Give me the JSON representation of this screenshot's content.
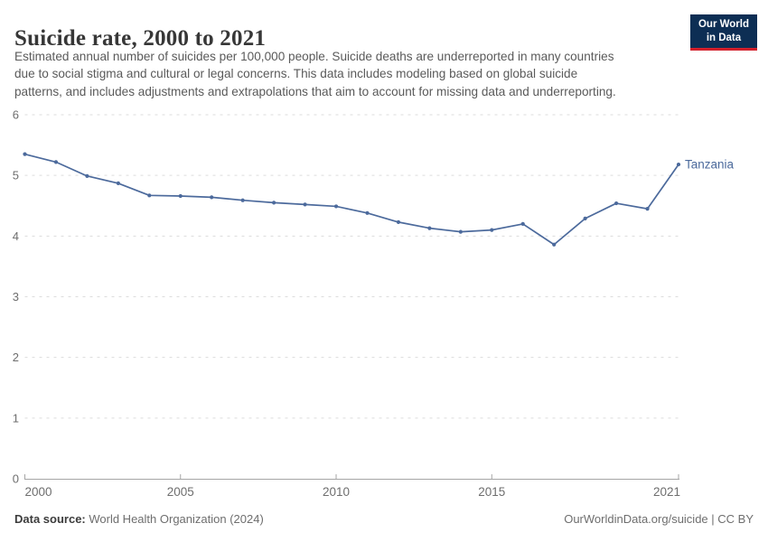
{
  "header": {
    "title": "Suicide rate, 2000 to 2021",
    "subtitle_lines": [
      "Estimated annual number of suicides per 100,000 people. Suicide deaths are underreported in many countries",
      "due to social stigma and cultural or legal concerns. This data includes modeling based on global suicide",
      "patterns, and includes adjustments and extrapolations that aim to account for missing data and underreporting."
    ],
    "logo": {
      "line1": "Our World",
      "line2": "in Data"
    }
  },
  "chart_data": {
    "type": "line",
    "title": "Suicide rate, 2000 to 2021",
    "xlabel": "",
    "ylabel": "",
    "xlim": [
      2000,
      2021
    ],
    "ylim": [
      0,
      6
    ],
    "xticks": [
      2000,
      2005,
      2010,
      2015,
      2021
    ],
    "yticks": [
      0,
      1,
      2,
      3,
      4,
      5,
      6
    ],
    "grid": "horizontal-dashed",
    "legend_position": "end-of-line-label",
    "series": [
      {
        "name": "Tanzania",
        "color": "#4C6A9C",
        "x": [
          2000,
          2001,
          2002,
          2003,
          2004,
          2005,
          2006,
          2007,
          2008,
          2009,
          2010,
          2011,
          2012,
          2013,
          2014,
          2015,
          2016,
          2017,
          2018,
          2019,
          2020,
          2021
        ],
        "values": [
          5.35,
          5.22,
          4.99,
          4.87,
          4.67,
          4.66,
          4.64,
          4.59,
          4.55,
          4.52,
          4.49,
          4.38,
          4.23,
          4.13,
          4.07,
          4.1,
          4.2,
          3.86,
          4.29,
          4.54,
          4.45,
          5.18
        ]
      }
    ]
  },
  "footer": {
    "source_label": "Data source:",
    "source_text": " World Health Organization (2024)",
    "link_text": "OurWorldinData.org/suicide | CC BY"
  },
  "colors": {
    "line": "#4C6A9C",
    "grid": "#dcdcdc",
    "axis": "#a5a5a5",
    "tick_label": "#6e6e6e",
    "logo_bg": "#0d2e54",
    "logo_red": "#d21f2b"
  }
}
